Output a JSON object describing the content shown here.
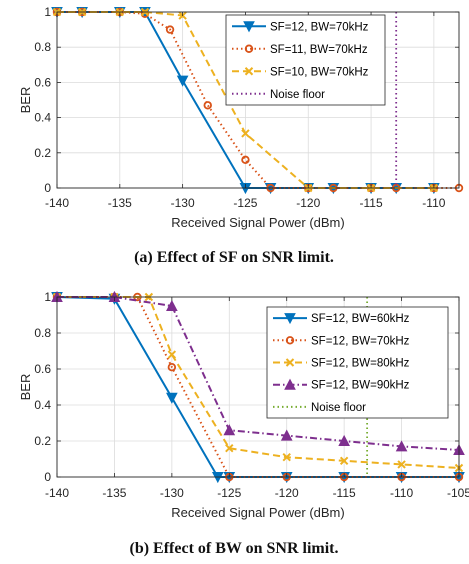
{
  "figure": {
    "caption_a": "(a) Effect of SF on SNR limit.",
    "caption_b": "(b) Effect of BW on SNR limit."
  },
  "chart_data": [
    {
      "type": "line",
      "xlabel": "Received Signal Power (dBm)",
      "ylabel": "BER",
      "xlim": [
        -140,
        -108
      ],
      "ylim": [
        0,
        1
      ],
      "xticks": [
        -140,
        -135,
        -130,
        -125,
        -120,
        -115,
        -110
      ],
      "yticks": [
        0,
        0.2,
        0.4,
        0.6,
        0.8,
        1
      ],
      "grid": true,
      "legend_position": "top-right",
      "series": [
        {
          "name": "SF=12, BW=70kHz",
          "color": "#0072BD",
          "dash": "solid",
          "marker": "triangle-down",
          "x": [
            -140,
            -138,
            -135,
            -133,
            -130,
            -125,
            -123,
            -120,
            -118,
            -115,
            -113,
            -110
          ],
          "y": [
            1,
            1,
            1,
            1,
            0.61,
            0,
            0,
            0,
            0,
            0,
            0,
            0
          ]
        },
        {
          "name": "SF=11, BW=70kHz",
          "color": "#D95319",
          "dash": "dotted",
          "marker": "circle",
          "x": [
            -140,
            -138,
            -135,
            -133,
            -131,
            -128,
            -125,
            -123,
            -120,
            -118,
            -115,
            -113,
            -110,
            -108
          ],
          "y": [
            1,
            1,
            1,
            0.99,
            0.9,
            0.47,
            0.16,
            0,
            0,
            0,
            0,
            0,
            0,
            0
          ]
        },
        {
          "name": "SF=10, BW=70kHz",
          "color": "#EDB120",
          "dash": "dashed",
          "marker": "x",
          "x": [
            -140,
            -138,
            -135,
            -133,
            -130,
            -125,
            -120,
            -115,
            -110
          ],
          "y": [
            1,
            1,
            1,
            1,
            0.98,
            0.31,
            0,
            0,
            0
          ]
        },
        {
          "name": "Noise floor",
          "color": "#7E2F8E",
          "dash": "dotted",
          "marker": "none",
          "vline": -113
        }
      ]
    },
    {
      "type": "line",
      "xlabel": "Received Signal Power (dBm)",
      "ylabel": "BER",
      "xlim": [
        -140,
        -105
      ],
      "ylim": [
        0,
        1
      ],
      "xticks": [
        -140,
        -135,
        -130,
        -125,
        -120,
        -115,
        -110,
        -105
      ],
      "yticks": [
        0,
        0.2,
        0.4,
        0.6,
        0.8,
        1
      ],
      "grid": true,
      "legend_position": "top-right",
      "series": [
        {
          "name": "SF=12, BW=60kHz",
          "color": "#0072BD",
          "dash": "solid",
          "marker": "triangle-down",
          "x": [
            -140,
            -135,
            -130,
            -126,
            -125,
            -120,
            -115,
            -110,
            -105
          ],
          "y": [
            1,
            0.99,
            0.44,
            0,
            0,
            0,
            0,
            0,
            0
          ]
        },
        {
          "name": "SF=12, BW=70kHz",
          "color": "#D95319",
          "dash": "dotted",
          "marker": "circle",
          "x": [
            -140,
            -135,
            -133,
            -130,
            -125,
            -120,
            -115,
            -110,
            -105
          ],
          "y": [
            1,
            1,
            1,
            0.61,
            0,
            0,
            0,
            0,
            0
          ]
        },
        {
          "name": "SF=12, BW=80kHz",
          "color": "#EDB120",
          "dash": "dashed",
          "marker": "x",
          "x": [
            -140,
            -135,
            -132,
            -130,
            -125,
            -120,
            -115,
            -110,
            -105
          ],
          "y": [
            1,
            1,
            1,
            0.68,
            0.16,
            0.11,
            0.09,
            0.07,
            0.05
          ]
        },
        {
          "name": "SF=12, BW=90kHz",
          "color": "#7E2F8E",
          "dash": "dashdot",
          "marker": "triangle-up",
          "x": [
            -140,
            -135,
            -130,
            -125,
            -120,
            -115,
            -110,
            -105
          ],
          "y": [
            1,
            1,
            0.95,
            0.26,
            0.23,
            0.2,
            0.17,
            0.15
          ]
        },
        {
          "name": "Noise floor",
          "color": "#77AC30",
          "dash": "dotted",
          "marker": "none",
          "vline": -113
        }
      ]
    }
  ]
}
